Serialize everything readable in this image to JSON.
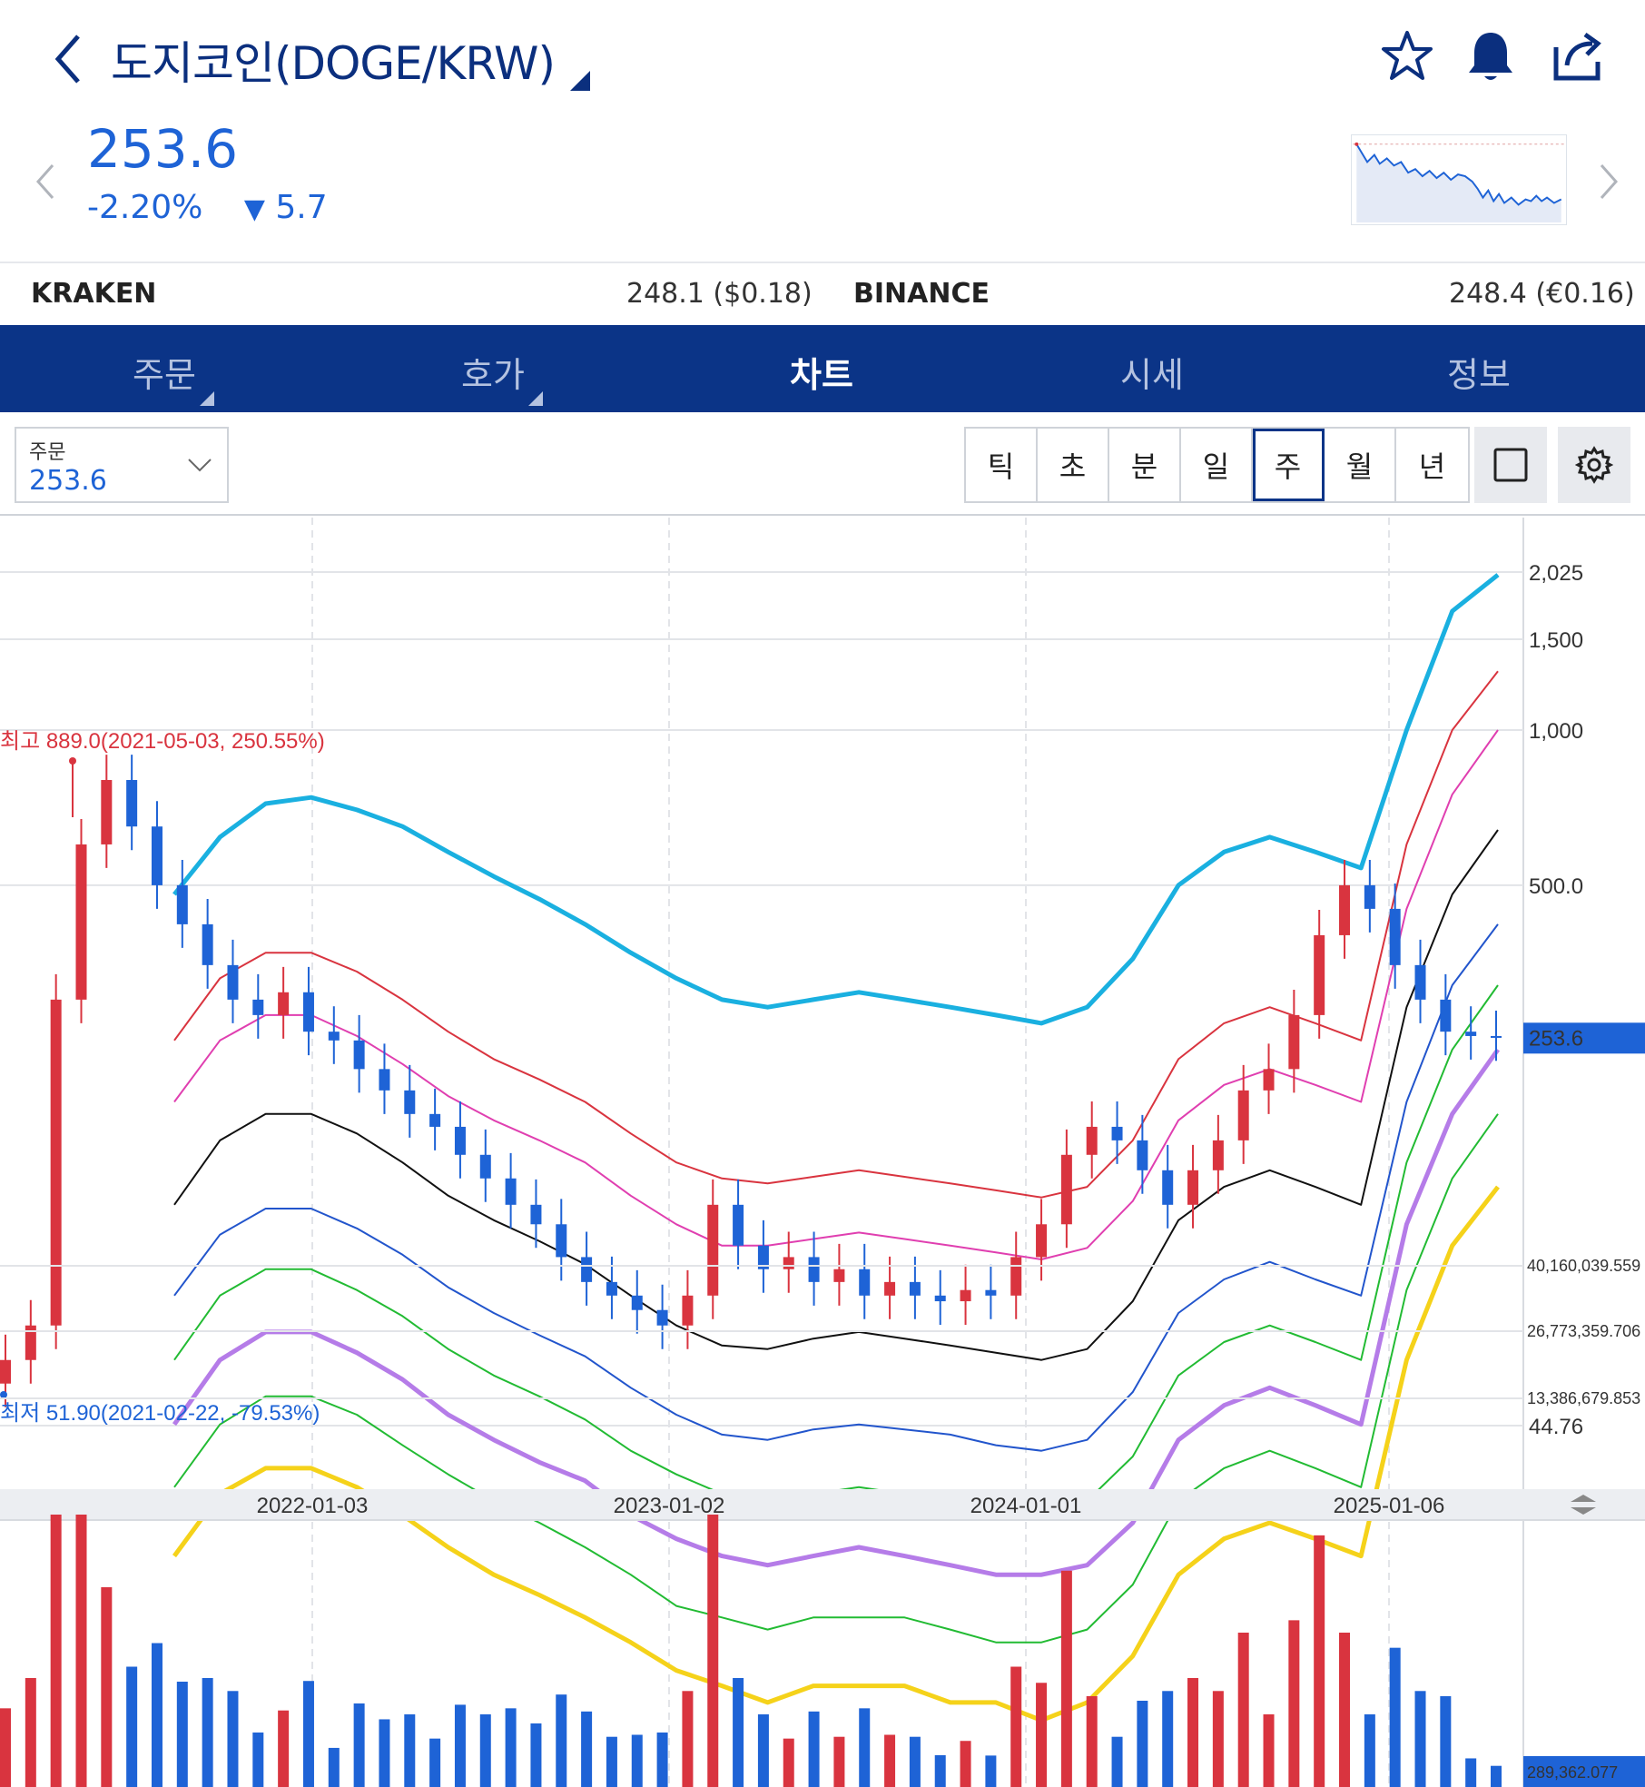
{
  "header": {
    "title": "도지코인(DOGE/KRW)",
    "price": "253.6",
    "change_pct": "-2.20%",
    "change_arrow": "▼",
    "change_abs": "5.7",
    "icons": [
      "back-arrow-icon",
      "star-icon",
      "bell-icon",
      "share-icon",
      "chevron-left-icon",
      "chevron-right-icon"
    ]
  },
  "exchanges": [
    {
      "name": "KRAKEN",
      "value": "248.1 ($0.18)"
    },
    {
      "name": "BINANCE",
      "value": "248.4 (€0.16)"
    }
  ],
  "tabs": [
    {
      "label": "주문",
      "active": false
    },
    {
      "label": "호가",
      "active": false
    },
    {
      "label": "차트",
      "active": true
    },
    {
      "label": "시세",
      "active": false
    },
    {
      "label": "정보",
      "active": false
    }
  ],
  "order_select": {
    "label": "주문",
    "value": "253.6"
  },
  "periods": [
    {
      "label": "틱",
      "active": false
    },
    {
      "label": "초",
      "active": false
    },
    {
      "label": "분",
      "active": false
    },
    {
      "label": "일",
      "active": false
    },
    {
      "label": "주",
      "active": true
    },
    {
      "label": "월",
      "active": false
    },
    {
      "label": "년",
      "active": false
    }
  ],
  "colors": {
    "brand_navy": "#0b3487",
    "price_blue": "#1e63d6",
    "up_red": "#d9343f",
    "down_blue": "#1e63d6",
    "band_outer_top": "#1ab0e0",
    "band_outer_bottom": "#f5d21a",
    "band_mid": "#b57ce8"
  },
  "chart_data": {
    "type": "candlestick",
    "interval": "week",
    "y_scale": "log",
    "y_ticks": [
      "2,025",
      "1,500",
      "1,000",
      "500.0",
      "44.76"
    ],
    "y_tick_values": [
      2025,
      1500,
      1000,
      500,
      44.76
    ],
    "x_ticks": [
      "2022-01-03",
      "2023-01-02",
      "2024-01-01",
      "2025-01-06"
    ],
    "current_price_label": "253.6",
    "annotations": {
      "high": "최고 889.0(2021-05-03, 250.55%)",
      "low": "최저 51.90(2021-02-22, -79.53%)"
    },
    "bands": [
      {
        "color": "#1ab0e0",
        "values": [
          480,
          620,
          720,
          740,
          700,
          650,
          580,
          520,
          470,
          420,
          370,
          330,
          300,
          290,
          300,
          310,
          300,
          290,
          280,
          270,
          290,
          360,
          500,
          580,
          620,
          580,
          540,
          1000,
          1700,
          2000
        ]
      },
      {
        "color": "#d9343f",
        "values": [
          250,
          330,
          370,
          370,
          340,
          300,
          260,
          230,
          210,
          190,
          165,
          145,
          135,
          132,
          136,
          140,
          136,
          132,
          128,
          124,
          130,
          160,
          230,
          270,
          290,
          270,
          250,
          600,
          1000,
          1300
        ]
      },
      {
        "color": "#e03fb0",
        "values": [
          190,
          250,
          280,
          280,
          255,
          225,
          195,
          175,
          160,
          145,
          125,
          110,
          100,
          100,
          103,
          106,
          103,
          100,
          97,
          94,
          99,
          122,
          175,
          205,
          220,
          205,
          190,
          450,
          750,
          1000
        ]
      },
      {
        "color": "#111111",
        "values": [
          120,
          160,
          180,
          180,
          165,
          145,
          125,
          112,
          102,
          92,
          80,
          70,
          64,
          63,
          66,
          68,
          66,
          64,
          62,
          60,
          63,
          78,
          112,
          130,
          140,
          130,
          120,
          290,
          480,
          640
        ]
      },
      {
        "color": "#2255cc",
        "values": [
          80,
          105,
          118,
          118,
          108,
          96,
          83,
          74,
          67,
          61,
          53,
          47,
          43,
          42,
          44,
          45,
          44,
          43,
          41,
          40,
          42,
          52,
          74,
          86,
          93,
          86,
          80,
          190,
          320,
          420
        ]
      },
      {
        "color": "#22bb33",
        "values": [
          60,
          80,
          90,
          90,
          82,
          73,
          63,
          56,
          51,
          46,
          40,
          36,
          33,
          32,
          33,
          34,
          33,
          32,
          31,
          30,
          32,
          39,
          56,
          65,
          70,
          65,
          60,
          145,
          240,
          320
        ]
      },
      {
        "color": "#b57ce8",
        "values": [
          45,
          60,
          68,
          68,
          62,
          55,
          47,
          42,
          38,
          35,
          30,
          27,
          25,
          24,
          25,
          26,
          25,
          24,
          23,
          23,
          24,
          29,
          42,
          49,
          53,
          49,
          45,
          110,
          180,
          240
        ]
      },
      {
        "color": "#22bb33",
        "values": [
          34,
          45,
          51,
          51,
          47,
          41,
          36,
          32,
          29,
          26,
          23,
          20,
          19,
          18,
          19,
          19,
          19,
          18,
          17,
          17,
          18,
          22,
          32,
          37,
          40,
          37,
          34,
          82,
          135,
          180
        ]
      },
      {
        "color": "#f5d21a",
        "values": [
          25,
          33,
          37,
          37,
          34,
          30,
          26,
          23,
          21,
          19,
          17,
          15,
          14,
          13,
          14,
          14,
          14,
          13,
          13,
          12,
          13,
          16,
          23,
          27,
          29,
          27,
          25,
          60,
          100,
          130
        ]
      }
    ],
    "candles_close": [
      60,
      70,
      300,
      600,
      800,
      650,
      500,
      420,
      350,
      300,
      280,
      310,
      260,
      250,
      220,
      200,
      180,
      170,
      150,
      135,
      120,
      110,
      95,
      85,
      80,
      75,
      70,
      80,
      120,
      100,
      90,
      95,
      85,
      90,
      80,
      85,
      80,
      78,
      82,
      80,
      95,
      110,
      150,
      170,
      160,
      140,
      120,
      140,
      160,
      200,
      220,
      280,
      400,
      500,
      450,
      350,
      300,
      260,
      255,
      253.6
    ],
    "volume_ticks": [
      "40,160,039.559",
      "26,773,359.706",
      "13,386,679.853"
    ],
    "volume_current": "289,362.077"
  }
}
